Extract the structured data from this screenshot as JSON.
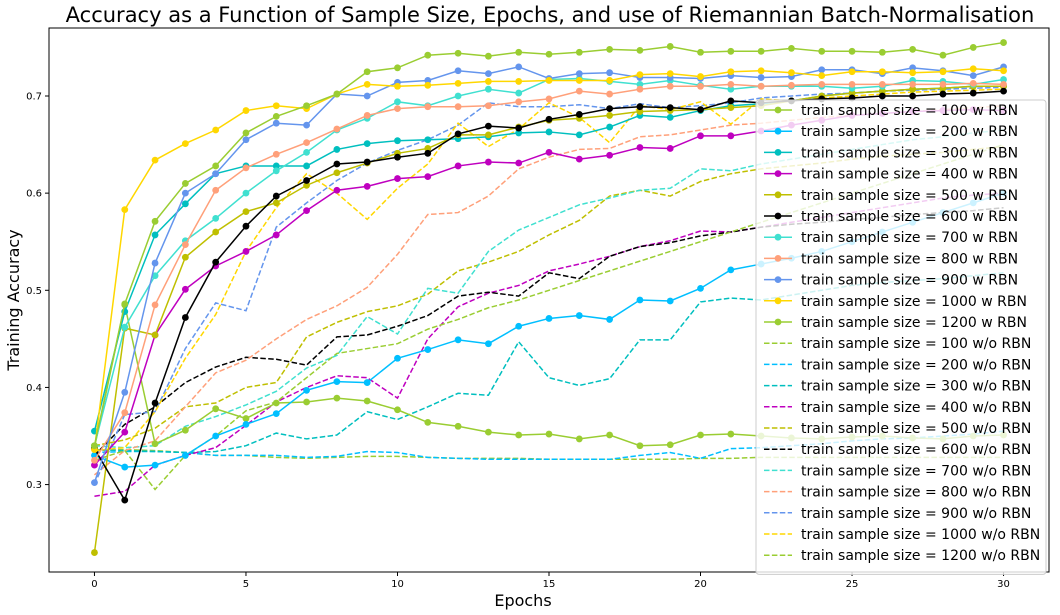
{
  "chart_data": {
    "type": "line",
    "title": "Accuracy as a Function of Sample Size, Epochs, and use of Riemannian Batch-Normalisation",
    "xlabel": "Epochs",
    "ylabel": "Training Accuracy",
    "xlim": [
      -1.5,
      31.5
    ],
    "ylim": [
      0.21,
      0.77
    ],
    "xticks": [
      0,
      5,
      10,
      15,
      20,
      25,
      30
    ],
    "yticks": [
      0.3,
      0.4,
      0.5,
      0.6,
      0.7
    ],
    "grid": false,
    "legend_position": "right",
    "x": [
      0,
      1,
      2,
      3,
      4,
      5,
      6,
      7,
      8,
      9,
      10,
      11,
      12,
      13,
      14,
      15,
      16,
      17,
      18,
      19,
      20,
      21,
      22,
      23,
      24,
      25,
      26,
      27,
      28,
      29,
      30
    ],
    "series": [
      {
        "name": "train sample size = 100 w RBN",
        "color": "#9acd32",
        "style": "solid",
        "marker": true,
        "values": [
          0.338,
          0.485,
          0.342,
          0.356,
          0.378,
          0.368,
          0.384,
          0.385,
          0.389,
          0.386,
          0.377,
          0.364,
          0.36,
          0.354,
          0.351,
          0.352,
          0.347,
          0.351,
          0.34,
          0.341,
          0.351,
          0.352,
          0.35,
          0.348,
          0.347,
          0.349,
          0.35,
          0.348,
          0.347,
          0.35,
          0.351
        ]
      },
      {
        "name": "train sample size = 200 w RBN",
        "color": "#00bfff",
        "style": "solid",
        "marker": true,
        "values": [
          0.33,
          0.318,
          0.32,
          0.33,
          0.35,
          0.362,
          0.373,
          0.397,
          0.406,
          0.405,
          0.43,
          0.439,
          0.449,
          0.445,
          0.463,
          0.471,
          0.474,
          0.47,
          0.49,
          0.489,
          0.502,
          0.521,
          0.527,
          0.533,
          0.54,
          0.55,
          0.56,
          0.57,
          0.58,
          0.59,
          0.6
        ]
      },
      {
        "name": "train sample size = 300 w RBN",
        "color": "#00bfbf",
        "style": "solid",
        "marker": true,
        "values": [
          0.355,
          0.478,
          0.557,
          0.589,
          0.62,
          0.628,
          0.628,
          0.628,
          0.645,
          0.651,
          0.654,
          0.655,
          0.656,
          0.658,
          0.662,
          0.663,
          0.66,
          0.668,
          0.68,
          0.678,
          0.685,
          0.69,
          0.692,
          0.695,
          0.7,
          0.703,
          0.705,
          0.707,
          0.708,
          0.71,
          0.71
        ]
      },
      {
        "name": "train sample size = 400 w RBN",
        "color": "#bf00bf",
        "style": "solid",
        "marker": true,
        "values": [
          0.32,
          0.354,
          0.454,
          0.501,
          0.525,
          0.54,
          0.557,
          0.582,
          0.603,
          0.607,
          0.615,
          0.617,
          0.628,
          0.632,
          0.631,
          0.642,
          0.635,
          0.639,
          0.647,
          0.646,
          0.659,
          0.659,
          0.664,
          0.67,
          0.675,
          0.68,
          0.682,
          0.684,
          0.685,
          0.686,
          0.685
        ]
      },
      {
        "name": "train sample size = 500 w RBN",
        "color": "#bfbf00",
        "style": "solid",
        "marker": true,
        "values": [
          0.23,
          0.461,
          0.454,
          0.534,
          0.56,
          0.581,
          0.59,
          0.608,
          0.621,
          0.631,
          0.641,
          0.646,
          0.66,
          0.66,
          0.668,
          0.675,
          0.677,
          0.68,
          0.684,
          0.685,
          0.686,
          0.688,
          0.69,
          0.695,
          0.7,
          0.703,
          0.705,
          0.707,
          0.708,
          0.71,
          0.71
        ]
      },
      {
        "name": "train sample size = 600 w RBN",
        "color": "#000000",
        "style": "solid",
        "marker": true,
        "values": [
          0.337,
          0.284,
          0.384,
          0.472,
          0.529,
          0.566,
          0.597,
          0.613,
          0.63,
          0.632,
          0.637,
          0.641,
          0.661,
          0.669,
          0.667,
          0.676,
          0.681,
          0.687,
          0.689,
          0.688,
          0.686,
          0.695,
          0.693,
          0.695,
          0.697,
          0.698,
          0.7,
          0.7,
          0.702,
          0.703,
          0.705
        ]
      },
      {
        "name": "train sample size = 700 w RBN",
        "color": "#40e0d0",
        "style": "solid",
        "marker": true,
        "values": [
          0.34,
          0.462,
          0.515,
          0.551,
          0.574,
          0.6,
          0.623,
          0.642,
          0.665,
          0.677,
          0.694,
          0.69,
          0.7,
          0.707,
          0.703,
          0.717,
          0.718,
          0.715,
          0.712,
          0.716,
          0.711,
          0.707,
          0.71,
          0.71,
          0.71,
          0.708,
          0.71,
          0.716,
          0.715,
          0.712,
          0.717
        ]
      },
      {
        "name": "train sample size = 800 w RBN",
        "color": "#ffa07a",
        "style": "solid",
        "marker": true,
        "values": [
          0.325,
          0.374,
          0.485,
          0.547,
          0.603,
          0.626,
          0.64,
          0.652,
          0.666,
          0.68,
          0.687,
          0.689,
          0.689,
          0.69,
          0.694,
          0.697,
          0.705,
          0.702,
          0.707,
          0.71,
          0.71,
          0.712,
          0.71,
          0.711,
          0.712,
          0.712,
          0.712,
          0.712,
          0.712,
          0.713,
          0.712
        ]
      },
      {
        "name": "train sample size = 900 w RBN",
        "color": "#6495ed",
        "style": "solid",
        "marker": true,
        "values": [
          0.302,
          0.395,
          0.528,
          0.6,
          0.62,
          0.655,
          0.672,
          0.67,
          0.702,
          0.7,
          0.714,
          0.716,
          0.726,
          0.723,
          0.73,
          0.718,
          0.723,
          0.724,
          0.719,
          0.719,
          0.718,
          0.721,
          0.719,
          0.72,
          0.727,
          0.727,
          0.723,
          0.729,
          0.726,
          0.721,
          0.73
        ]
      },
      {
        "name": "train sample size = 1000 w RBN",
        "color": "#ffd700",
        "style": "solid",
        "marker": true,
        "values": [
          0.336,
          0.583,
          0.634,
          0.651,
          0.665,
          0.685,
          0.69,
          0.687,
          0.702,
          0.712,
          0.71,
          0.711,
          0.713,
          0.715,
          0.715,
          0.716,
          0.716,
          0.716,
          0.722,
          0.723,
          0.72,
          0.725,
          0.726,
          0.724,
          0.721,
          0.725,
          0.725,
          0.724,
          0.725,
          0.728,
          0.726
        ]
      },
      {
        "name": "train sample size = 1200 w RBN",
        "color": "#9acd32",
        "style": "solid",
        "marker": true,
        "values": [
          0.34,
          0.486,
          0.571,
          0.61,
          0.628,
          0.662,
          0.679,
          0.69,
          0.702,
          0.725,
          0.729,
          0.742,
          0.744,
          0.741,
          0.745,
          0.743,
          0.745,
          0.748,
          0.747,
          0.751,
          0.745,
          0.746,
          0.746,
          0.749,
          0.746,
          0.746,
          0.745,
          0.748,
          0.742,
          0.75,
          0.755
        ]
      },
      {
        "name": "train sample size = 100 w/o RBN",
        "color": "#9acd32",
        "style": "dashed",
        "marker": false,
        "values": [
          0.335,
          0.336,
          0.335,
          0.333,
          0.33,
          0.33,
          0.328,
          0.327,
          0.328,
          0.329,
          0.329,
          0.328,
          0.327,
          0.327,
          0.327,
          0.326,
          0.326,
          0.326,
          0.326,
          0.326,
          0.327,
          0.327,
          0.328,
          0.328,
          0.328,
          0.328,
          0.328,
          0.328,
          0.328,
          0.328,
          0.328
        ]
      },
      {
        "name": "train sample size = 200 w/o RBN",
        "color": "#00bfff",
        "style": "dashed",
        "marker": false,
        "values": [
          0.333,
          0.334,
          0.334,
          0.333,
          0.33,
          0.33,
          0.33,
          0.328,
          0.329,
          0.334,
          0.333,
          0.328,
          0.327,
          0.326,
          0.326,
          0.326,
          0.326,
          0.326,
          0.33,
          0.333,
          0.327,
          0.337,
          0.338,
          0.34,
          0.342,
          0.345,
          0.347,
          0.348,
          0.35,
          0.352,
          0.355
        ]
      },
      {
        "name": "train sample size = 300 w/o RBN",
        "color": "#00bfbf",
        "style": "dashed",
        "marker": false,
        "values": [
          0.336,
          0.335,
          0.334,
          0.333,
          0.334,
          0.34,
          0.353,
          0.347,
          0.351,
          0.375,
          0.367,
          0.38,
          0.394,
          0.392,
          0.447,
          0.41,
          0.402,
          0.409,
          0.449,
          0.449,
          0.488,
          0.492,
          0.49,
          0.495,
          0.5,
          0.505,
          0.508,
          0.51,
          0.512,
          0.515,
          0.518
        ]
      },
      {
        "name": "train sample size = 400 w/o RBN",
        "color": "#bf00bf",
        "style": "dashed",
        "marker": false,
        "values": [
          0.288,
          0.293,
          0.32,
          0.33,
          0.338,
          0.361,
          0.385,
          0.4,
          0.412,
          0.41,
          0.389,
          0.45,
          0.483,
          0.497,
          0.505,
          0.52,
          0.527,
          0.535,
          0.545,
          0.551,
          0.561,
          0.56,
          0.565,
          0.57,
          0.575,
          0.58,
          0.585,
          0.59,
          0.595,
          0.598,
          0.6
        ]
      },
      {
        "name": "train sample size = 500 w/o RBN",
        "color": "#bfbf00",
        "style": "dashed",
        "marker": false,
        "values": [
          0.34,
          0.346,
          0.358,
          0.38,
          0.384,
          0.4,
          0.405,
          0.452,
          0.467,
          0.478,
          0.484,
          0.496,
          0.52,
          0.529,
          0.54,
          0.557,
          0.572,
          0.597,
          0.603,
          0.597,
          0.612,
          0.62,
          0.625,
          0.628,
          0.631,
          0.635,
          0.638,
          0.64,
          0.642,
          0.645,
          0.648
        ]
      },
      {
        "name": "train sample size = 600 w/o RBN",
        "color": "#000000",
        "style": "dashed",
        "marker": false,
        "values": [
          0.33,
          0.362,
          0.38,
          0.405,
          0.421,
          0.431,
          0.429,
          0.423,
          0.452,
          0.454,
          0.463,
          0.474,
          0.494,
          0.498,
          0.494,
          0.518,
          0.512,
          0.535,
          0.545,
          0.549,
          0.556,
          0.56,
          0.565,
          0.568,
          0.57,
          0.573,
          0.575,
          0.578,
          0.58,
          0.582,
          0.585
        ]
      },
      {
        "name": "train sample size = 700 w/o RBN",
        "color": "#40e0d0",
        "style": "dashed",
        "marker": false,
        "values": [
          0.34,
          0.338,
          0.34,
          0.36,
          0.37,
          0.382,
          0.396,
          0.42,
          0.433,
          0.473,
          0.455,
          0.502,
          0.497,
          0.54,
          0.562,
          0.575,
          0.588,
          0.595,
          0.603,
          0.605,
          0.625,
          0.623,
          0.63,
          0.635,
          0.64,
          0.645,
          0.65,
          0.655,
          0.658,
          0.662,
          0.665
        ]
      },
      {
        "name": "train sample size = 800 w/o RBN",
        "color": "#ffa07a",
        "style": "dashed",
        "marker": false,
        "values": [
          0.31,
          0.335,
          0.345,
          0.38,
          0.415,
          0.428,
          0.45,
          0.47,
          0.484,
          0.503,
          0.537,
          0.578,
          0.58,
          0.597,
          0.625,
          0.637,
          0.645,
          0.646,
          0.658,
          0.66,
          0.665,
          0.67,
          0.672,
          0.675,
          0.678,
          0.68,
          0.682,
          0.684,
          0.686,
          0.688,
          0.69
        ]
      },
      {
        "name": "train sample size = 900 w/o RBN",
        "color": "#6495ed",
        "style": "dashed",
        "marker": false,
        "values": [
          0.3,
          0.372,
          0.375,
          0.44,
          0.487,
          0.479,
          0.565,
          0.59,
          0.613,
          0.631,
          0.644,
          0.655,
          0.67,
          0.693,
          0.689,
          0.689,
          0.691,
          0.687,
          0.692,
          0.688,
          0.69,
          0.693,
          0.698,
          0.7,
          0.702,
          0.703,
          0.705,
          0.706,
          0.707,
          0.708,
          0.709
        ]
      },
      {
        "name": "train sample size = 1000 w/o RBN",
        "color": "#ffd700",
        "style": "dashed",
        "marker": false,
        "values": [
          0.335,
          0.338,
          0.375,
          0.43,
          0.475,
          0.54,
          0.585,
          0.62,
          0.6,
          0.573,
          0.605,
          0.63,
          0.672,
          0.648,
          0.666,
          0.693,
          0.678,
          0.652,
          0.69,
          0.686,
          0.694,
          0.671,
          0.697,
          0.695,
          0.698,
          0.7,
          0.702,
          0.704,
          0.705,
          0.706,
          0.707
        ]
      },
      {
        "name": "train sample size = 1200 w/o RBN",
        "color": "#9acd32",
        "style": "dashed",
        "marker": false,
        "values": [
          0.325,
          0.335,
          0.295,
          0.33,
          0.35,
          0.376,
          0.385,
          0.41,
          0.435,
          0.44,
          0.445,
          0.46,
          0.47,
          0.482,
          0.49,
          0.5,
          0.51,
          0.52,
          0.53,
          0.54,
          0.55,
          0.56,
          0.57,
          0.58,
          0.59,
          0.6,
          0.61,
          0.62,
          0.63,
          0.64,
          0.65
        ]
      }
    ]
  }
}
